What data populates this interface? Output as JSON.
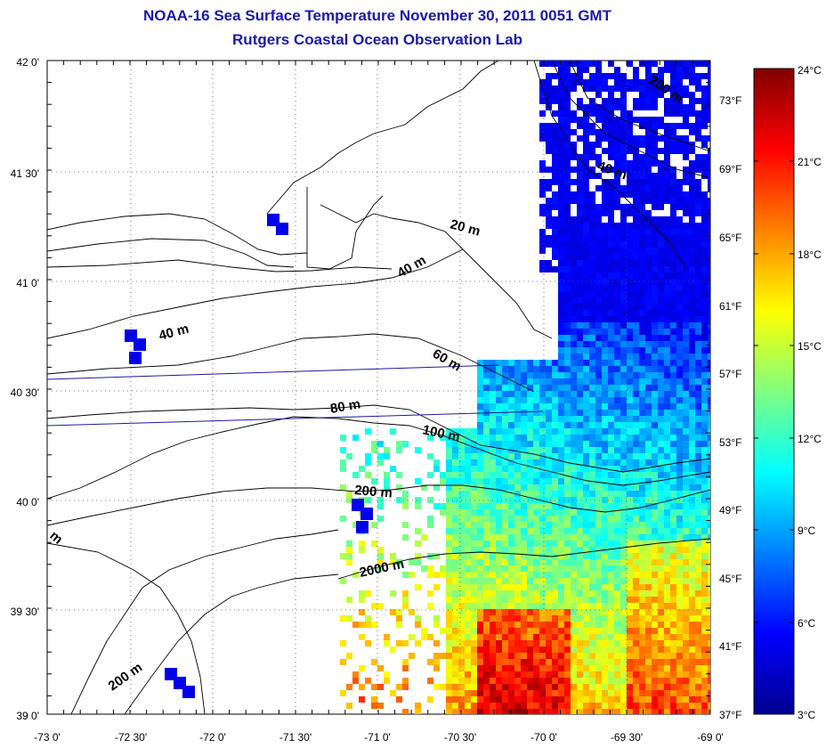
{
  "title": "NOAA-16 Sea Surface Temperature November 30, 2011 0051 GMT",
  "subtitle": "Rutgers Coastal Ocean Observation Lab",
  "lon_ticks": [
    "-73 0'",
    "-72 30'",
    "-72 0'",
    "-71 30'",
    "-71 0'",
    "-70 30'",
    "-70 0'",
    "-69 30'",
    "-69 0'"
  ],
  "lat_ticks": [
    "42 0'",
    "41 30'",
    "41 0'",
    "40 30'",
    "40 0'",
    "39 30'",
    "39 0'"
  ],
  "fahrenheit_ticks": [
    "73°F",
    "69°F",
    "65°F",
    "61°F",
    "57°F",
    "53°F",
    "49°F",
    "45°F",
    "41°F",
    "37°F"
  ],
  "celsius_ticks": [
    "24°C",
    "21°C",
    "18°C",
    "15°C",
    "12°C",
    "9°C",
    "6°C",
    "3°C"
  ],
  "colorbar": {
    "min_c": 3,
    "max_c": 24,
    "stops": [
      "#00008f",
      "#0000ff",
      "#0080ff",
      "#00ffff",
      "#80ff80",
      "#ffff00",
      "#ff8000",
      "#ff0000",
      "#800000"
    ]
  },
  "isobath_labels": [
    "200 m",
    "40 m",
    "20 m",
    "40 m",
    "40 m",
    "60 m",
    "80 m",
    "100 m",
    "200 m",
    "2000 m",
    "200 m",
    "m"
  ],
  "colors": {
    "title": "#1a1aa8",
    "coastline": "#000000",
    "transect": "#1a1a9a"
  }
}
